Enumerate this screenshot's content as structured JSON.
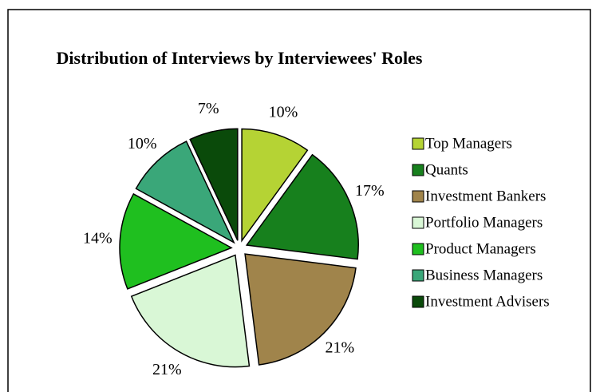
{
  "chart_data": {
    "type": "pie",
    "title": "Distribution of Interviews by Interviewees' Roles",
    "categories": [
      "Top Managers",
      "Quants",
      "Investment Bankers",
      "Portfolio Managers",
      "Product Managers",
      "Business Managers",
      "Investment Advisers"
    ],
    "values": [
      10,
      17,
      21,
      21,
      14,
      10,
      7
    ],
    "value_labels": [
      "10%",
      "17%",
      "21%",
      "21%",
      "14%",
      "10%",
      "7%"
    ],
    "colors": [
      "#b5d334",
      "#17801d",
      "#a0844b",
      "#d9f7d6",
      "#1fbf1f",
      "#3aa779",
      "#0a4a0a"
    ],
    "legend": "right"
  }
}
